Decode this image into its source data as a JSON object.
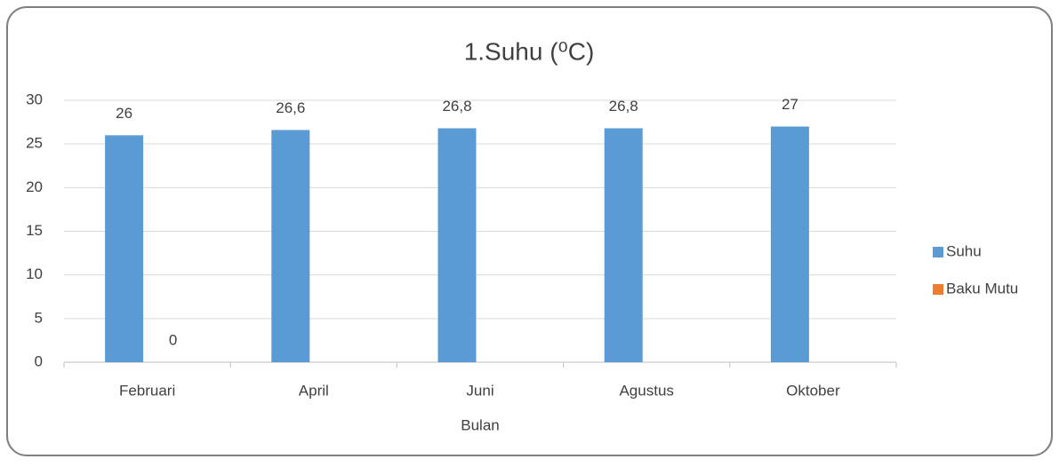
{
  "chart_data": {
    "type": "bar",
    "title": "1.Suhu (⁰C)",
    "x_label": "Bulan",
    "categories": [
      "Februari",
      "April",
      "Juni",
      "Agustus",
      "Oktober"
    ],
    "series": [
      {
        "name": "Suhu",
        "color": "#5b9bd5",
        "values": [
          26,
          26.6,
          26.8,
          26.8,
          27
        ],
        "value_labels": [
          "26",
          "26,6",
          "26,8",
          "26,8",
          "27"
        ]
      },
      {
        "name": "Baku Mutu",
        "color": "#ed7d31",
        "values": [
          0,
          null,
          null,
          null,
          null
        ],
        "value_labels": [
          "0",
          null,
          null,
          null,
          null
        ]
      }
    ],
    "ylim": [
      0,
      30
    ],
    "yticks": [
      0,
      5,
      10,
      15,
      20,
      25,
      30
    ],
    "grid": true,
    "legend": "right"
  }
}
